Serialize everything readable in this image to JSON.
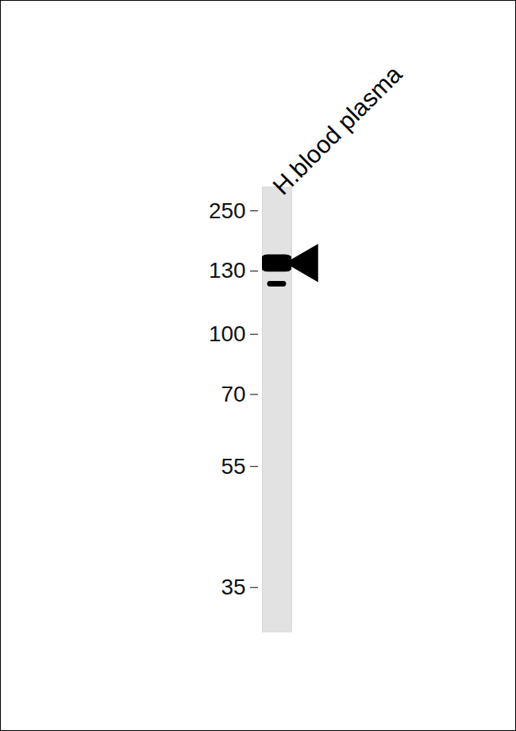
{
  "chart_data": {
    "type": "blot",
    "categories": [
      "H.blood plasma"
    ],
    "bands": [
      {
        "lane": "H.blood plasma",
        "values": [
          146,
          124
        ]
      }
    ],
    "arrow": 146,
    "marker": "triangle",
    "ylim": [
      30,
      320
    ],
    "yticks": [
      250,
      130,
      100,
      70,
      55,
      35
    ],
    "grid": false
  }
}
